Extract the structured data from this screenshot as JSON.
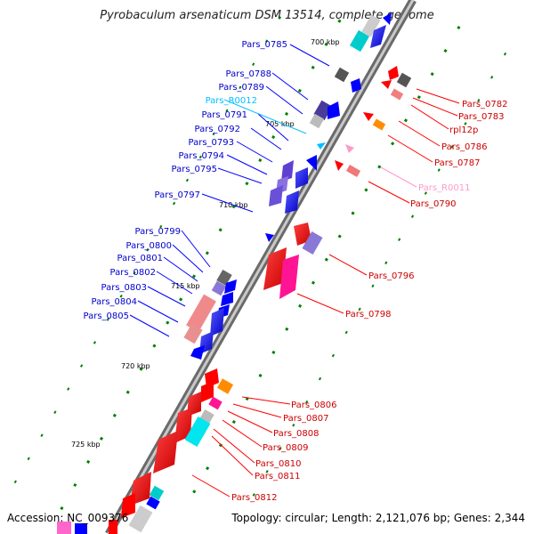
{
  "title": "Pyrobaculum arsenaticum DSM 13514, complete genome",
  "footer": {
    "accession": "Accession: NC_009376",
    "stats": "Topology: circular; Length: 2,121,076 bp; Genes: 2,344"
  },
  "kbp_ticks": [
    "700 kbp",
    "705 kbp",
    "710 kbp",
    "715 kbp",
    "720 kbp",
    "725 kbp"
  ],
  "colors": {
    "backbone": "#7d7d7d",
    "cds_forward": "#0000ff",
    "cds_reverse": "#ff0000",
    "rna_forward": "#00bfff",
    "rna_reverse": "#ff99cc",
    "tick": "#008000"
  },
  "genes_forward": [
    "Pars_0785",
    "Pars_0788",
    "Pars_0789",
    "Pars_R0012",
    "Pars_0791",
    "Pars_0792",
    "Pars_0793",
    "Pars_0794",
    "Pars_0795",
    "Pars_0797",
    "Pars_0799",
    "Pars_0800",
    "Pars_0801",
    "Pars_0802",
    "Pars_0803",
    "Pars_0804",
    "Pars_0805"
  ],
  "genes_reverse": [
    "Pars_0782",
    "Pars_0783",
    "rpl12p",
    "Pars_0786",
    "Pars_0787",
    "Pars_R0011",
    "Pars_0790",
    "Pars_0796",
    "Pars_0798",
    "Pars_0806",
    "Pars_0807",
    "Pars_0808",
    "Pars_0809",
    "Pars_0810",
    "Pars_0811",
    "Pars_0812"
  ]
}
